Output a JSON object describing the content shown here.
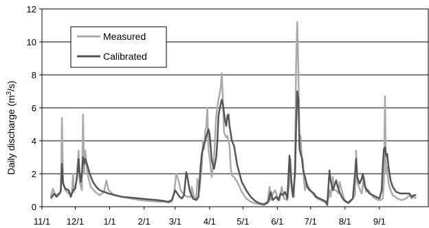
{
  "chart_data": {
    "type": "line",
    "title": "",
    "xlabel": "",
    "ylabel_main": "Daily discharge (m",
    "ylabel_sup": "3",
    "ylabel_tail": "/s)",
    "ylim": [
      0,
      12
    ],
    "yticks": [
      0,
      2,
      4,
      6,
      8,
      10,
      12
    ],
    "grid": "horizontal",
    "legend_position": "top-left",
    "x_start_day": 0,
    "x_end_day": 348,
    "x_ticks": [
      {
        "label": "11/1",
        "day": 0
      },
      {
        "label": "12/1",
        "day": 30
      },
      {
        "label": "1/1",
        "day": 61
      },
      {
        "label": "2/1",
        "day": 92
      },
      {
        "label": "3/1",
        "day": 120
      },
      {
        "label": "4/1",
        "day": 151
      },
      {
        "label": "5/1",
        "day": 181
      },
      {
        "label": "6/1",
        "day": 212
      },
      {
        "label": "7/1",
        "day": 242
      },
      {
        "label": "8/1",
        "day": 273
      },
      {
        "label": "9/1",
        "day": 304
      }
    ],
    "series": [
      {
        "name": "Measured",
        "color": "#aaaaaa",
        "points": [
          [
            8,
            0.6
          ],
          [
            10,
            1.1
          ],
          [
            12,
            0.7
          ],
          [
            15,
            0.8
          ],
          [
            17,
            0.9
          ],
          [
            18,
            5.4
          ],
          [
            19,
            1.5
          ],
          [
            21,
            1.0
          ],
          [
            24,
            0.8
          ],
          [
            27,
            0.8
          ],
          [
            28,
            2.0
          ],
          [
            29,
            0.9
          ],
          [
            31,
            1.5
          ],
          [
            33,
            3.4
          ],
          [
            34,
            1.5
          ],
          [
            36,
            1.0
          ],
          [
            37,
            5.6
          ],
          [
            38,
            2.0
          ],
          [
            39,
            3.4
          ],
          [
            41,
            2.0
          ],
          [
            44,
            1.2
          ],
          [
            48,
            0.9
          ],
          [
            52,
            0.7
          ],
          [
            56,
            0.9
          ],
          [
            58,
            1.6
          ],
          [
            60,
            1.0
          ],
          [
            65,
            0.7
          ],
          [
            72,
            0.6
          ],
          [
            80,
            0.5
          ],
          [
            88,
            0.4
          ],
          [
            96,
            0.35
          ],
          [
            104,
            0.3
          ],
          [
            110,
            0.3
          ],
          [
            114,
            0.25
          ],
          [
            117,
            0.3
          ],
          [
            119,
            0.8
          ],
          [
            121,
            2.0
          ],
          [
            123,
            1.6
          ],
          [
            125,
            1.0
          ],
          [
            128,
            0.7
          ],
          [
            131,
            0.6
          ],
          [
            134,
            0.6
          ],
          [
            135,
            1.2
          ],
          [
            137,
            0.6
          ],
          [
            139,
            0.5
          ],
          [
            140,
            1.7
          ],
          [
            142,
            1.0
          ],
          [
            144,
            2.5
          ],
          [
            145,
            4.0
          ],
          [
            146,
            3.5
          ],
          [
            147,
            4.6
          ],
          [
            148,
            4.8
          ],
          [
            149,
            6.0
          ],
          [
            150,
            3.5
          ],
          [
            152,
            2.4
          ],
          [
            153,
            1.8
          ],
          [
            155,
            3.0
          ],
          [
            157,
            5.5
          ],
          [
            159,
            6.5
          ],
          [
            161,
            7.2
          ],
          [
            162,
            8.1
          ],
          [
            163,
            6.5
          ],
          [
            164,
            4.5
          ],
          [
            166,
            4.2
          ],
          [
            167,
            4.3
          ],
          [
            169,
            3.7
          ],
          [
            170,
            2.4
          ],
          [
            171,
            1.9
          ],
          [
            173,
            1.8
          ],
          [
            176,
            1.5
          ],
          [
            180,
            0.9
          ],
          [
            184,
            0.5
          ],
          [
            188,
            0.3
          ],
          [
            192,
            0.2
          ],
          [
            196,
            0.15
          ],
          [
            200,
            0.1
          ],
          [
            203,
            0.2
          ],
          [
            205,
            1.2
          ],
          [
            206,
            0.4
          ],
          [
            208,
            0.8
          ],
          [
            210,
            1.0
          ],
          [
            212,
            0.6
          ],
          [
            214,
            0.4
          ],
          [
            216,
            1.2
          ],
          [
            218,
            0.5
          ],
          [
            221,
            0.4
          ],
          [
            223,
            1.4
          ],
          [
            224,
            2.9
          ],
          [
            225,
            1.0
          ],
          [
            227,
            0.6
          ],
          [
            228,
            3.0
          ],
          [
            229,
            9.0
          ],
          [
            230,
            11.2
          ],
          [
            231,
            8.0
          ],
          [
            232,
            3.5
          ],
          [
            233,
            4.3
          ],
          [
            234,
            3.0
          ],
          [
            235,
            2.8
          ],
          [
            236,
            1.6
          ],
          [
            237,
            1.0
          ],
          [
            238,
            1.5
          ],
          [
            240,
            1.2
          ],
          [
            242,
            1.0
          ],
          [
            244,
            0.8
          ],
          [
            246,
            0.6
          ],
          [
            248,
            0.5
          ],
          [
            251,
            0.4
          ],
          [
            254,
            0.3
          ],
          [
            256,
            0.2
          ],
          [
            258,
            0.5
          ],
          [
            259,
            1.0
          ],
          [
            260,
            0.6
          ],
          [
            262,
            1.8
          ],
          [
            263,
            1.0
          ],
          [
            265,
            1.0
          ],
          [
            267,
            0.8
          ],
          [
            268,
            1.5
          ],
          [
            270,
            1.0
          ],
          [
            272,
            0.5
          ],
          [
            274,
            0.3
          ],
          [
            276,
            0.2
          ],
          [
            278,
            0.3
          ],
          [
            280,
            0.5
          ],
          [
            282,
            0.7
          ],
          [
            283,
            3.4
          ],
          [
            284,
            1.5
          ],
          [
            286,
            1.1
          ],
          [
            288,
            0.8
          ],
          [
            290,
            1.8
          ],
          [
            292,
            0.9
          ],
          [
            294,
            1.0
          ],
          [
            296,
            0.8
          ],
          [
            298,
            0.6
          ],
          [
            300,
            0.5
          ],
          [
            303,
            0.4
          ],
          [
            305,
            0.4
          ],
          [
            307,
            0.5
          ],
          [
            308,
            1.5
          ],
          [
            309,
            6.7
          ],
          [
            310,
            2.0
          ],
          [
            311,
            2.4
          ],
          [
            312,
            1.5
          ],
          [
            314,
            1.0
          ],
          [
            316,
            0.7
          ],
          [
            320,
            0.5
          ],
          [
            324,
            0.4
          ],
          [
            328,
            0.5
          ],
          [
            331,
            0.7
          ],
          [
            333,
            0.5
          ],
          [
            335,
            0.6
          ],
          [
            337,
            0.5
          ]
        ]
      },
      {
        "name": "Calibrated",
        "color": "#555555",
        "points": [
          [
            8,
            0.5
          ],
          [
            11,
            0.8
          ],
          [
            13,
            0.6
          ],
          [
            16,
            0.8
          ],
          [
            17,
            1.0
          ],
          [
            18,
            2.6
          ],
          [
            19,
            1.4
          ],
          [
            21,
            1.1
          ],
          [
            24,
            1.0
          ],
          [
            26,
            0.6
          ],
          [
            28,
            1.0
          ],
          [
            30,
            1.1
          ],
          [
            32,
            2.0
          ],
          [
            33,
            2.9
          ],
          [
            34,
            2.0
          ],
          [
            35,
            1.5
          ],
          [
            36,
            2.0
          ],
          [
            37,
            3.0
          ],
          [
            38,
            2.6
          ],
          [
            39,
            2.9
          ],
          [
            41,
            2.5
          ],
          [
            43,
            2.0
          ],
          [
            46,
            1.5
          ],
          [
            49,
            1.2
          ],
          [
            52,
            1.0
          ],
          [
            56,
            0.9
          ],
          [
            60,
            0.8
          ],
          [
            66,
            0.7
          ],
          [
            72,
            0.6
          ],
          [
            80,
            0.55
          ],
          [
            88,
            0.5
          ],
          [
            96,
            0.45
          ],
          [
            104,
            0.4
          ],
          [
            110,
            0.35
          ],
          [
            114,
            0.3
          ],
          [
            117,
            0.4
          ],
          [
            120,
            1.0
          ],
          [
            122,
            0.8
          ],
          [
            124,
            0.6
          ],
          [
            126,
            0.5
          ],
          [
            128,
            0.7
          ],
          [
            130,
            2.1
          ],
          [
            131,
            1.8
          ],
          [
            133,
            1.0
          ],
          [
            136,
            0.5
          ],
          [
            139,
            0.4
          ],
          [
            141,
            0.6
          ],
          [
            143,
            2.5
          ],
          [
            144,
            3.2
          ],
          [
            145,
            3.5
          ],
          [
            147,
            4.0
          ],
          [
            149,
            4.5
          ],
          [
            150,
            4.7
          ],
          [
            151,
            4.4
          ],
          [
            153,
            2.8
          ],
          [
            155,
            2.3
          ],
          [
            157,
            3.0
          ],
          [
            158,
            4.0
          ],
          [
            159,
            5.5
          ],
          [
            160,
            5.9
          ],
          [
            161,
            6.2
          ],
          [
            162,
            6.5
          ],
          [
            163,
            6.2
          ],
          [
            165,
            5.2
          ],
          [
            166,
            4.9
          ],
          [
            167,
            5.5
          ],
          [
            168,
            5.6
          ],
          [
            169,
            4.9
          ],
          [
            171,
            4.0
          ],
          [
            173,
            3.7
          ],
          [
            176,
            2.5
          ],
          [
            180,
            1.5
          ],
          [
            184,
            1.0
          ],
          [
            188,
            0.6
          ],
          [
            192,
            0.35
          ],
          [
            196,
            0.2
          ],
          [
            200,
            0.15
          ],
          [
            204,
            0.3
          ],
          [
            206,
            0.9
          ],
          [
            208,
            0.4
          ],
          [
            211,
            0.6
          ],
          [
            213,
            0.4
          ],
          [
            215,
            0.8
          ],
          [
            217,
            0.7
          ],
          [
            219,
            0.9
          ],
          [
            221,
            0.5
          ],
          [
            222,
            1.8
          ],
          [
            223,
            3.1
          ],
          [
            224,
            2.0
          ],
          [
            226,
            0.6
          ],
          [
            228,
            2.0
          ],
          [
            229,
            5.0
          ],
          [
            230,
            7.0
          ],
          [
            231,
            6.5
          ],
          [
            232,
            3.5
          ],
          [
            233,
            3.2
          ],
          [
            234,
            3.0
          ],
          [
            235,
            2.4
          ],
          [
            236,
            2.0
          ],
          [
            237,
            1.8
          ],
          [
            239,
            1.2
          ],
          [
            241,
            1.0
          ],
          [
            243,
            0.9
          ],
          [
            245,
            0.8
          ],
          [
            247,
            0.6
          ],
          [
            250,
            0.5
          ],
          [
            253,
            0.4
          ],
          [
            256,
            0.3
          ],
          [
            257,
            0.1
          ],
          [
            258,
            1.2
          ],
          [
            259,
            2.2
          ],
          [
            260,
            1.6
          ],
          [
            262,
            1.0
          ],
          [
            265,
            1.6
          ],
          [
            266,
            1.3
          ],
          [
            268,
            0.9
          ],
          [
            270,
            0.6
          ],
          [
            272,
            0.4
          ],
          [
            274,
            0.3
          ],
          [
            276,
            0.25
          ],
          [
            280,
            0.5
          ],
          [
            282,
            2.0
          ],
          [
            283,
            2.9
          ],
          [
            284,
            1.8
          ],
          [
            286,
            1.4
          ],
          [
            288,
            1.7
          ],
          [
            289,
            2.0
          ],
          [
            291,
            1.2
          ],
          [
            293,
            1.0
          ],
          [
            295,
            0.8
          ],
          [
            298,
            0.7
          ],
          [
            301,
            0.6
          ],
          [
            304,
            0.5
          ],
          [
            306,
            1.0
          ],
          [
            307,
            2.5
          ],
          [
            308,
            3.5
          ],
          [
            309,
            3.6
          ],
          [
            310,
            3.1
          ],
          [
            311,
            3.2
          ],
          [
            312,
            2.5
          ],
          [
            314,
            1.6
          ],
          [
            316,
            1.2
          ],
          [
            319,
            0.9
          ],
          [
            323,
            0.8
          ],
          [
            327,
            0.8
          ],
          [
            331,
            0.8
          ],
          [
            333,
            0.6
          ],
          [
            335,
            0.7
          ],
          [
            337,
            0.7
          ]
        ]
      }
    ]
  }
}
